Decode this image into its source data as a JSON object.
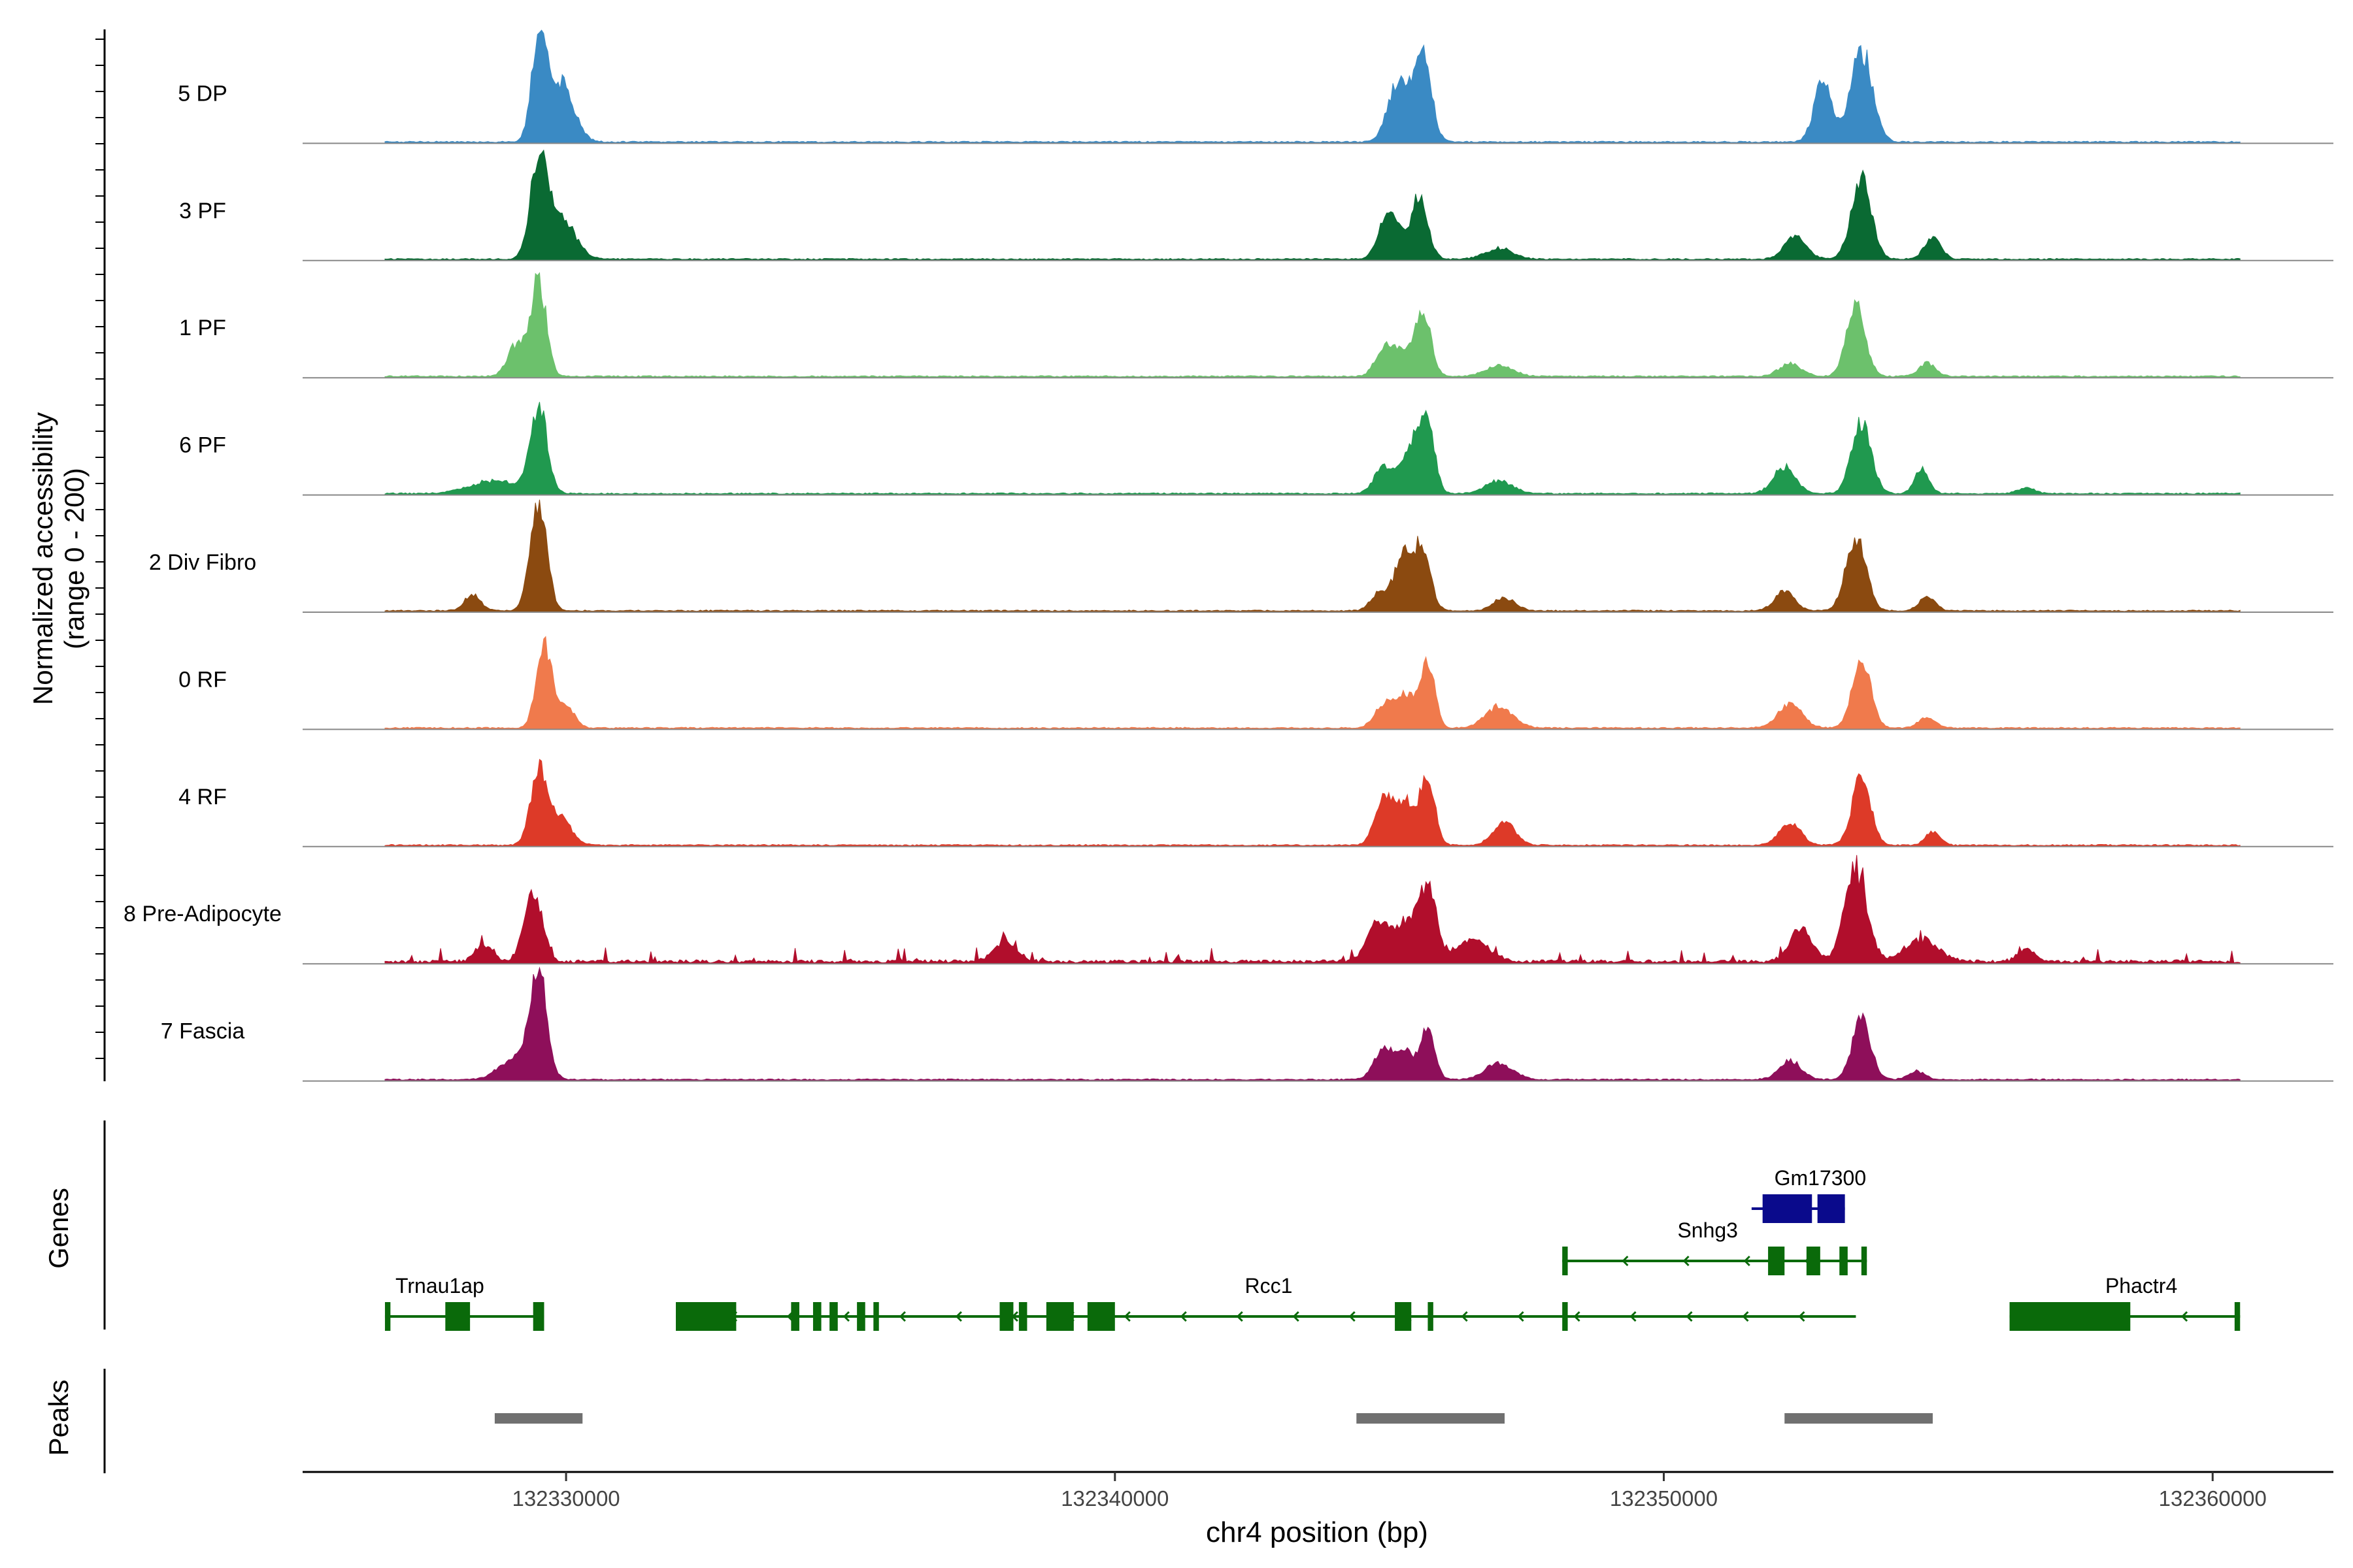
{
  "chart_data": {
    "type": "area",
    "ylabel_line1": "Normalized accessibility",
    "ylabel_line2": "(range 0 - 200)",
    "ylim": [
      0,
      200
    ],
    "xlabel": "chr4 position (bp)",
    "xlim": [
      132325200,
      132362200
    ],
    "x_ticks": [
      132330000,
      132340000,
      132350000,
      132360000
    ],
    "x_tick_labels": [
      "132330000",
      "132340000",
      "132350000",
      "132360000"
    ],
    "genes_label": "Genes",
    "peaks_label": "Peaks",
    "coverage_span": [
      132326700,
      132360500
    ],
    "tracks": [
      {
        "name": "5 DP",
        "color": "#3a8ac4",
        "scale": [
          0.95,
          0.8,
          0.85
        ],
        "peaks": [
          [
            132329500,
            130,
            0.95
          ],
          [
            132329900,
            230,
            0.55
          ],
          [
            132345150,
            180,
            0.55
          ],
          [
            132345600,
            160,
            0.8
          ],
          [
            132352900,
            160,
            0.55
          ],
          [
            132353600,
            200,
            0.85
          ]
        ]
      },
      {
        "name": "3 PF",
        "color": "#0a6a33",
        "scale": [
          0.9,
          0.6,
          0.75
        ],
        "peaks": [
          [
            132329500,
            150,
            0.9
          ],
          [
            132329900,
            250,
            0.4
          ],
          [
            132344900,
            150,
            0.25
          ],
          [
            132345100,
            150,
            0.3
          ],
          [
            132345550,
            150,
            0.6
          ],
          [
            132347000,
            250,
            0.1
          ],
          [
            132352400,
            200,
            0.2
          ],
          [
            132353600,
            180,
            0.75
          ],
          [
            132354900,
            150,
            0.2
          ]
        ]
      },
      {
        "name": "1 PF",
        "color": "#6cc16c",
        "scale": [
          0.88,
          0.6,
          0.65
        ],
        "peaks": [
          [
            132329500,
            140,
            0.88
          ],
          [
            132329100,
            160,
            0.3
          ],
          [
            132344900,
            160,
            0.25
          ],
          [
            132345200,
            160,
            0.2
          ],
          [
            132345600,
            150,
            0.6
          ],
          [
            132347000,
            250,
            0.1
          ],
          [
            132352300,
            200,
            0.12
          ],
          [
            132353500,
            170,
            0.65
          ],
          [
            132354800,
            150,
            0.12
          ]
        ]
      },
      {
        "name": "6 PF",
        "color": "#20994f",
        "scale": [
          0.8,
          0.6,
          0.65
        ],
        "peaks": [
          [
            132329500,
            150,
            0.8
          ],
          [
            132328700,
            450,
            0.12
          ],
          [
            132344900,
            170,
            0.25
          ],
          [
            132345400,
            170,
            0.45
          ],
          [
            132345700,
            130,
            0.6
          ],
          [
            132347000,
            250,
            0.12
          ],
          [
            132352200,
            200,
            0.25
          ],
          [
            132353600,
            180,
            0.65
          ],
          [
            132354700,
            130,
            0.22
          ],
          [
            132356600,
            150,
            0.06
          ]
        ]
      },
      {
        "name": "2 Div Fibro",
        "color": "#8b4a10",
        "scale": [
          1.0,
          0.55,
          0.7
        ],
        "peaks": [
          [
            132329500,
            150,
            1.0
          ],
          [
            132328300,
            150,
            0.15
          ],
          [
            132344800,
            150,
            0.15
          ],
          [
            132345250,
            170,
            0.5
          ],
          [
            132345600,
            150,
            0.55
          ],
          [
            132347100,
            200,
            0.12
          ],
          [
            132352200,
            180,
            0.18
          ],
          [
            132353500,
            180,
            0.7
          ],
          [
            132354800,
            150,
            0.12
          ]
        ]
      },
      {
        "name": "0 RF",
        "color": "#f07a4c",
        "scale": [
          0.78,
          0.6,
          0.62
        ],
        "peaks": [
          [
            132329600,
            140,
            0.78
          ],
          [
            132330000,
            150,
            0.2
          ],
          [
            132344900,
            170,
            0.2
          ],
          [
            132345300,
            180,
            0.3
          ],
          [
            132345700,
            130,
            0.6
          ],
          [
            132347000,
            250,
            0.2
          ],
          [
            132352300,
            220,
            0.22
          ],
          [
            132353600,
            170,
            0.62
          ],
          [
            132354800,
            150,
            0.1
          ]
        ]
      },
      {
        "name": "4 RF",
        "color": "#dd3a28",
        "scale": [
          0.68,
          0.63,
          0.62
        ],
        "peaks": [
          [
            132329500,
            150,
            0.68
          ],
          [
            132329900,
            200,
            0.25
          ],
          [
            132344900,
            160,
            0.45
          ],
          [
            132345300,
            170,
            0.4
          ],
          [
            132345700,
            130,
            0.63
          ],
          [
            132347100,
            200,
            0.22
          ],
          [
            132352300,
            200,
            0.2
          ],
          [
            132353600,
            170,
            0.62
          ],
          [
            132354900,
            130,
            0.12
          ]
        ]
      },
      {
        "name": "8 Pre-Adipocyte",
        "color": "#b10e2c",
        "scale": [
          0.68,
          0.7,
          0.85
        ],
        "peaks": [
          [
            132329400,
            160,
            0.68
          ],
          [
            132328500,
            160,
            0.15
          ],
          [
            132338000,
            200,
            0.2
          ],
          [
            132344800,
            200,
            0.35
          ],
          [
            132345300,
            200,
            0.35
          ],
          [
            132345700,
            150,
            0.7
          ],
          [
            132346500,
            300,
            0.2
          ],
          [
            132352500,
            200,
            0.3
          ],
          [
            132353500,
            200,
            0.85
          ],
          [
            132354700,
            300,
            0.2
          ],
          [
            132356600,
            150,
            0.12
          ]
        ]
      },
      {
        "name": "7 Fascia",
        "color": "#8e0f5a",
        "scale": [
          0.95,
          0.48,
          0.55
        ],
        "peaks": [
          [
            132329500,
            150,
            0.95
          ],
          [
            132329100,
            300,
            0.2
          ],
          [
            132344900,
            170,
            0.3
          ],
          [
            132345300,
            160,
            0.25
          ],
          [
            132345700,
            130,
            0.48
          ],
          [
            132347000,
            250,
            0.15
          ],
          [
            132352300,
            200,
            0.18
          ],
          [
            132353600,
            170,
            0.55
          ],
          [
            132354600,
            150,
            0.08
          ]
        ]
      }
    ],
    "genes": [
      {
        "name": "Trnau1ap",
        "color": "#0a6a0a",
        "start": 132326700,
        "end": 132329600,
        "strand": "-",
        "exons": [
          [
            132326700,
            132326800
          ],
          [
            132327800,
            132328250
          ],
          [
            132329400,
            132329600
          ]
        ],
        "label_x": 132327700,
        "row": 1
      },
      {
        "name": "Rcc1",
        "color": "#0a6a0a",
        "start": 132332000,
        "end": 132353500,
        "strand": "-",
        "exons": [
          [
            132332000,
            132333100
          ],
          [
            132334100,
            132334250
          ],
          [
            132334500,
            132334650
          ],
          [
            132334800,
            132334950
          ],
          [
            132335300,
            132335450
          ],
          [
            132335600,
            132335700
          ],
          [
            132337900,
            132338150
          ],
          [
            132338250,
            132338400
          ],
          [
            132338750,
            132339250
          ],
          [
            132339500,
            132340000
          ],
          [
            132345100,
            132345400
          ],
          [
            132345700,
            132345800
          ],
          [
            132348150,
            132348250
          ]
        ],
        "label_x": 132342800,
        "row": 1
      },
      {
        "name": "Snhg3",
        "color": "#0a6a0a",
        "start": 132348150,
        "end": 132353700,
        "strand": "-",
        "exons": [
          [
            132348150,
            132348250
          ],
          [
            132351900,
            132352200
          ],
          [
            132352600,
            132352850
          ],
          [
            132353200,
            132353350
          ],
          [
            132353600,
            132353700
          ]
        ],
        "label_x": 132350800,
        "row": 2
      },
      {
        "name": "Gm17300",
        "color": "#0a0a8c",
        "start": 132351600,
        "end": 132353300,
        "strand": "-",
        "exons": [
          [
            132351800,
            132352700
          ],
          [
            132352800,
            132353300
          ]
        ],
        "label_x": 132352850,
        "row": 3
      },
      {
        "name": "Phactr4",
        "color": "#0a6a0a",
        "start": 132356300,
        "end": 132360500,
        "strand": "-",
        "exons": [
          [
            132356300,
            132358500
          ],
          [
            132360400,
            132360500
          ]
        ],
        "label_x": 132358700,
        "row": 1
      }
    ],
    "peak_regions": [
      [
        132328700,
        132330300
      ],
      [
        132344400,
        132347100
      ],
      [
        132352200,
        132354900
      ]
    ]
  }
}
